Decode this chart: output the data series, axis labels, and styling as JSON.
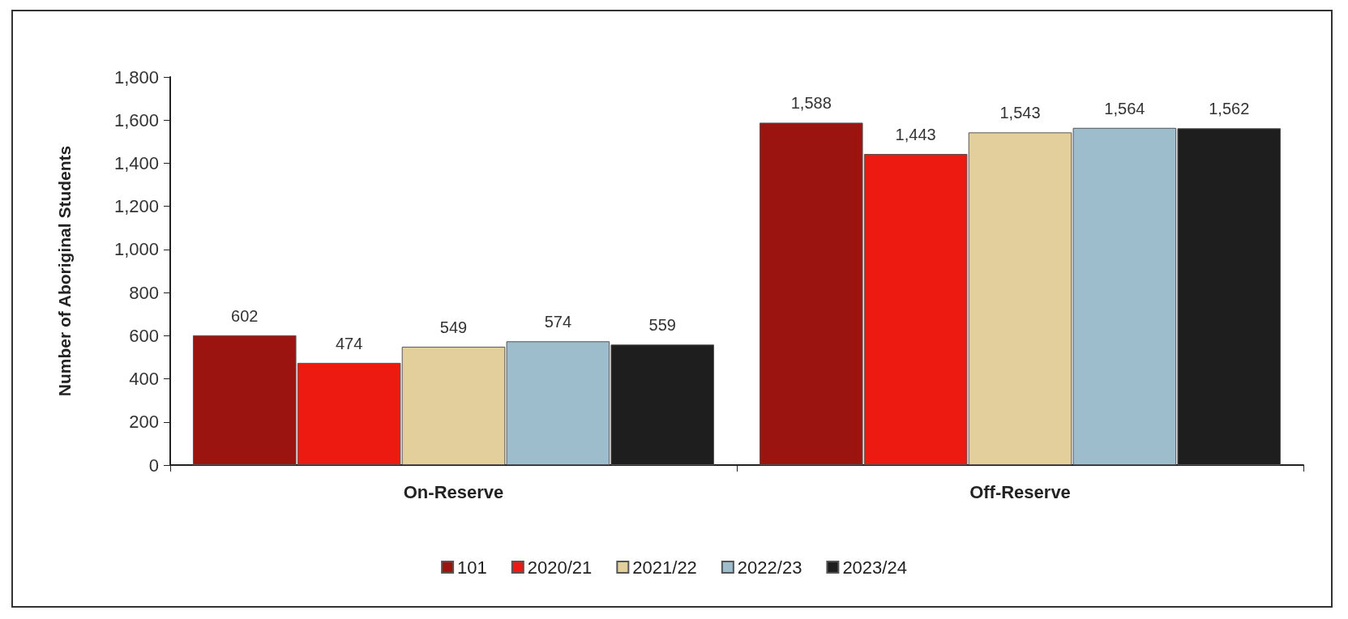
{
  "chart_data": {
    "type": "bar",
    "ylabel": "Number of Aboriginal Students",
    "categories": [
      "On-Reserve",
      "Off-Reserve"
    ],
    "series": [
      {
        "name": "101",
        "color": "#9b1410",
        "values": [
          602,
          1588
        ],
        "value_labels": [
          "602",
          "1,588"
        ]
      },
      {
        "name": "2020/21",
        "color": "#ec1a10",
        "values": [
          474,
          1443
        ],
        "value_labels": [
          "474",
          "1,443"
        ]
      },
      {
        "name": "2021/22",
        "color": "#e2cf9c",
        "values": [
          549,
          1543
        ],
        "value_labels": [
          "549",
          "1,543"
        ]
      },
      {
        "name": "2022/23",
        "color": "#9ebdcc",
        "values": [
          574,
          1564
        ],
        "value_labels": [
          "574",
          "1,564"
        ]
      },
      {
        "name": "2023/24",
        "color": "#1e1e1e",
        "values": [
          559,
          1562
        ],
        "value_labels": [
          "559",
          "1,562"
        ]
      }
    ],
    "ylim": [
      0,
      1800
    ],
    "yticks": [
      0,
      200,
      400,
      600,
      800,
      {
        "value": 1000,
        "label": "1,000"
      },
      {
        "value": 1200,
        "label": "1,200"
      },
      {
        "value": 1400,
        "label": "1,400"
      },
      {
        "value": 1600,
        "label": "1,600"
      },
      {
        "value": 1800,
        "label": "1,800"
      }
    ],
    "grid": false,
    "legend": "bottom"
  }
}
